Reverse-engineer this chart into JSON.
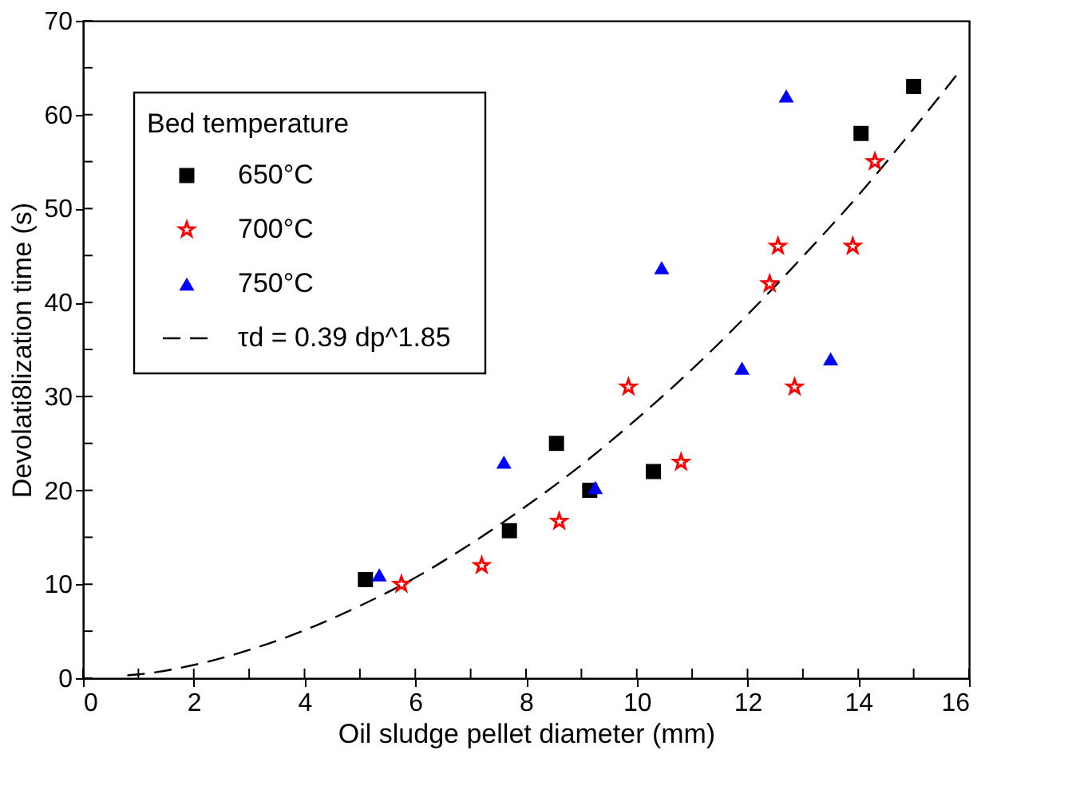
{
  "chart_data": {
    "type": "scatter",
    "xlabel": "Oil sludge pellet diameter (mm)",
    "ylabel": "Devolati8lization time (s)",
    "legend_title": "Bed temperature",
    "legend": "top left",
    "grid": false,
    "xlim": [
      0,
      16
    ],
    "ylim": [
      0,
      70
    ],
    "xticks": [
      0,
      {
        "value": 1,
        "label": null
      },
      2,
      {
        "value": 3,
        "label": null
      },
      4,
      {
        "value": 5,
        "label": null
      },
      6,
      {
        "value": 7,
        "label": null
      },
      8,
      {
        "value": 9,
        "label": null
      },
      10,
      {
        "value": 11,
        "label": null
      },
      12,
      {
        "value": 13,
        "label": null
      },
      14,
      {
        "value": 15,
        "label": null
      },
      16
    ],
    "yticks": [
      0,
      {
        "value": 5,
        "label": null
      },
      10,
      {
        "value": 15,
        "label": null
      },
      20,
      {
        "value": 25,
        "label": null
      },
      30,
      {
        "value": 35,
        "label": null
      },
      40,
      {
        "value": 45,
        "label": null
      },
      50,
      {
        "value": 55,
        "label": null
      },
      60,
      {
        "value": 65,
        "label": null
      },
      70
    ],
    "series": [
      {
        "name": "650°C",
        "color": "#000000",
        "marker": "square",
        "x": [
          5.1,
          7.7,
          8.55,
          9.15,
          10.3,
          14.05,
          15
        ],
        "values": [
          10.5,
          15.7,
          25,
          20,
          22,
          58,
          63
        ]
      },
      {
        "name": "700°C",
        "color": "#ff0000",
        "marker": "star",
        "x": [
          5.75,
          7.2,
          8.6,
          9.85,
          10.8,
          12.4,
          12.55,
          12.85,
          13.9,
          14.3
        ],
        "values": [
          10,
          12,
          16.7,
          31,
          23,
          42,
          46,
          31,
          46,
          55
        ]
      },
      {
        "name": "750°C",
        "color": "#0000ff",
        "marker": "triangle",
        "x": [
          5.35,
          7.6,
          9.25,
          10.45,
          11.9,
          12.7,
          13.5
        ],
        "values": [
          11,
          23,
          20.3,
          43.7,
          33,
          62,
          34
        ]
      },
      {
        "name": "τd = 0.39 dp^1.85",
        "type": "line",
        "line_style": "dashed",
        "color": "#000000",
        "x": [
          0.8,
          1,
          2,
          3,
          4,
          5,
          6,
          7,
          8,
          9,
          10,
          11,
          12,
          13,
          14,
          15,
          15.8
        ],
        "values": [
          0.3,
          0.4,
          1.4,
          3,
          5.1,
          7.7,
          10.7,
          14.3,
          18.3,
          22.7,
          27.6,
          32.9,
          38.7,
          44.9,
          51.4,
          58.5,
          64.4
        ]
      }
    ]
  }
}
